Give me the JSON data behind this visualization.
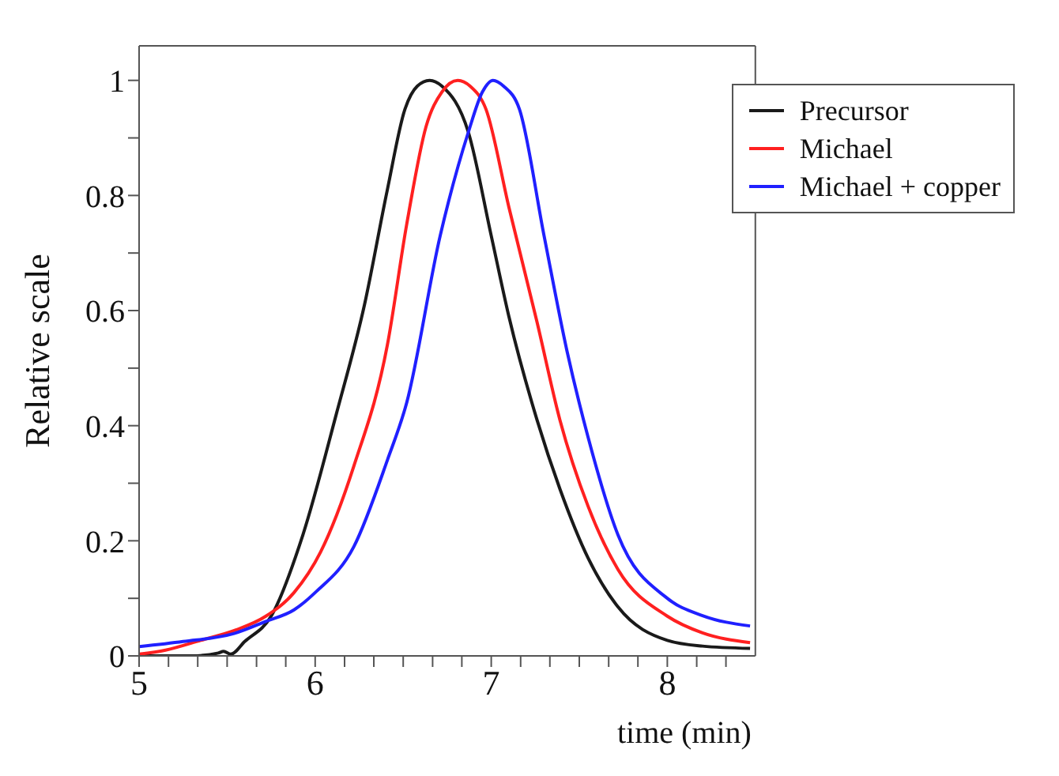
{
  "chart_data": {
    "type": "line",
    "xlabel": "time (min)",
    "ylabel": "Relative scale",
    "xlim": [
      5,
      8.5
    ],
    "ylim": [
      0,
      1.06
    ],
    "xticks": [
      5,
      {
        "value": 5.167,
        "label": null
      },
      {
        "value": 5.333,
        "label": null
      },
      {
        "value": 5.5,
        "label": null
      },
      {
        "value": 5.667,
        "label": null
      },
      {
        "value": 5.833,
        "label": null
      },
      6,
      {
        "value": 6.167,
        "label": null
      },
      {
        "value": 6.333,
        "label": null
      },
      {
        "value": 6.5,
        "label": null
      },
      {
        "value": 6.667,
        "label": null
      },
      {
        "value": 6.833,
        "label": null
      },
      7,
      {
        "value": 7.167,
        "label": null
      },
      {
        "value": 7.333,
        "label": null
      },
      {
        "value": 7.5,
        "label": null
      },
      {
        "value": 7.667,
        "label": null
      },
      {
        "value": 7.833,
        "label": null
      },
      8,
      {
        "value": 8.167,
        "label": null
      },
      {
        "value": 8.333,
        "label": null
      }
    ],
    "yticks": [
      0,
      {
        "value": 0.1,
        "label": null
      },
      0.2,
      {
        "value": 0.3,
        "label": null
      },
      0.4,
      {
        "value": 0.5,
        "label": null
      },
      0.6,
      {
        "value": 0.7,
        "label": null
      },
      0.8,
      {
        "value": 0.9,
        "label": null
      },
      1
    ],
    "legend": "top right",
    "marker": "none",
    "line_style": "solid",
    "grid": false,
    "series": [
      {
        "name": "Precursor",
        "color": "#1a1a1a",
        "x": [
          5,
          5.3,
          5.45,
          5.48,
          5.52,
          5.6,
          5.75,
          5.93,
          6.12,
          6.28,
          6.41,
          6.51,
          6.58,
          6.65,
          6.72,
          6.87,
          7.0,
          7.1,
          7.26,
          7.39,
          7.55,
          7.72,
          8.0,
          8.2,
          8.47
        ],
        "values": [
          0,
          0,
          0.005,
          0.008,
          0.003,
          0.025,
          0.069,
          0.21,
          0.42,
          0.61,
          0.81,
          0.95,
          0.99,
          1,
          0.99,
          0.91,
          0.73,
          0.59,
          0.41,
          0.29,
          0.17,
          0.085,
          0.027,
          0.017,
          0.013
        ]
      },
      {
        "name": "Michael",
        "color": "#ff2020",
        "x": [
          5,
          5.15,
          5.35,
          5.55,
          5.72,
          5.88,
          6.03,
          6.22,
          6.41,
          6.52,
          6.63,
          6.72,
          6.81,
          6.88,
          6.97,
          7.1,
          7.26,
          7.39,
          7.55,
          7.72,
          8.0,
          8.2,
          8.47
        ],
        "values": [
          0.003,
          0.01,
          0.027,
          0.045,
          0.069,
          0.11,
          0.18,
          0.33,
          0.54,
          0.75,
          0.92,
          0.98,
          1,
          0.99,
          0.95,
          0.78,
          0.58,
          0.41,
          0.26,
          0.15,
          0.069,
          0.04,
          0.023
        ]
      },
      {
        "name": "Michael + copper",
        "color": "#2020ff",
        "x": [
          5,
          5.25,
          5.54,
          5.72,
          5.88,
          6.0,
          6.22,
          6.41,
          6.52,
          6.71,
          6.87,
          6.95,
          7.01,
          7.07,
          7.16,
          7.3,
          7.43,
          7.55,
          7.72,
          8.0,
          8.2,
          8.47
        ],
        "values": [
          0.016,
          0.025,
          0.039,
          0.06,
          0.08,
          0.11,
          0.19,
          0.34,
          0.44,
          0.73,
          0.91,
          0.98,
          1,
          0.99,
          0.95,
          0.73,
          0.53,
          0.38,
          0.21,
          0.1,
          0.07,
          0.052
        ]
      }
    ]
  }
}
